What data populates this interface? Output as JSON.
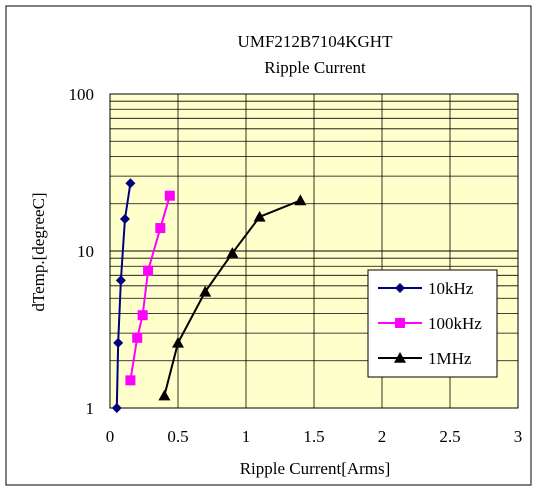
{
  "chart_data": {
    "type": "line",
    "title": "UMF212B7104KGHT",
    "subtitle": "Ripple Current",
    "xlabel": "Ripple Current[Arms]",
    "ylabel": "dTemp.[degreeC]",
    "xlim": [
      0,
      3
    ],
    "ylim": [
      1,
      100
    ],
    "yscale": "log",
    "x_ticks": [
      "0",
      "0.5",
      "1",
      "1.5",
      "2",
      "2.5",
      "3"
    ],
    "y_ticks": [
      "1",
      "10",
      "100"
    ],
    "grid": true,
    "legend_position": "right",
    "plot_background": "#ffffcc",
    "series": [
      {
        "name": "10kHz",
        "color": "#000080",
        "marker": "diamond",
        "points": [
          [
            0.05,
            1.0
          ],
          [
            0.06,
            2.6
          ],
          [
            0.08,
            6.5
          ],
          [
            0.11,
            16.0
          ],
          [
            0.15,
            27.0
          ]
        ]
      },
      {
        "name": "100kHz",
        "color": "#ff00ff",
        "marker": "square",
        "points": [
          [
            0.15,
            1.5
          ],
          [
            0.2,
            2.8
          ],
          [
            0.24,
            3.9
          ],
          [
            0.28,
            7.5
          ],
          [
            0.37,
            14.0
          ],
          [
            0.44,
            22.5
          ]
        ]
      },
      {
        "name": "1MHz",
        "color": "#000000",
        "marker": "triangle",
        "points": [
          [
            0.4,
            1.2
          ],
          [
            0.5,
            2.6
          ],
          [
            0.7,
            5.5
          ],
          [
            0.9,
            9.7
          ],
          [
            1.1,
            16.5
          ],
          [
            1.4,
            21.0
          ]
        ]
      }
    ]
  }
}
